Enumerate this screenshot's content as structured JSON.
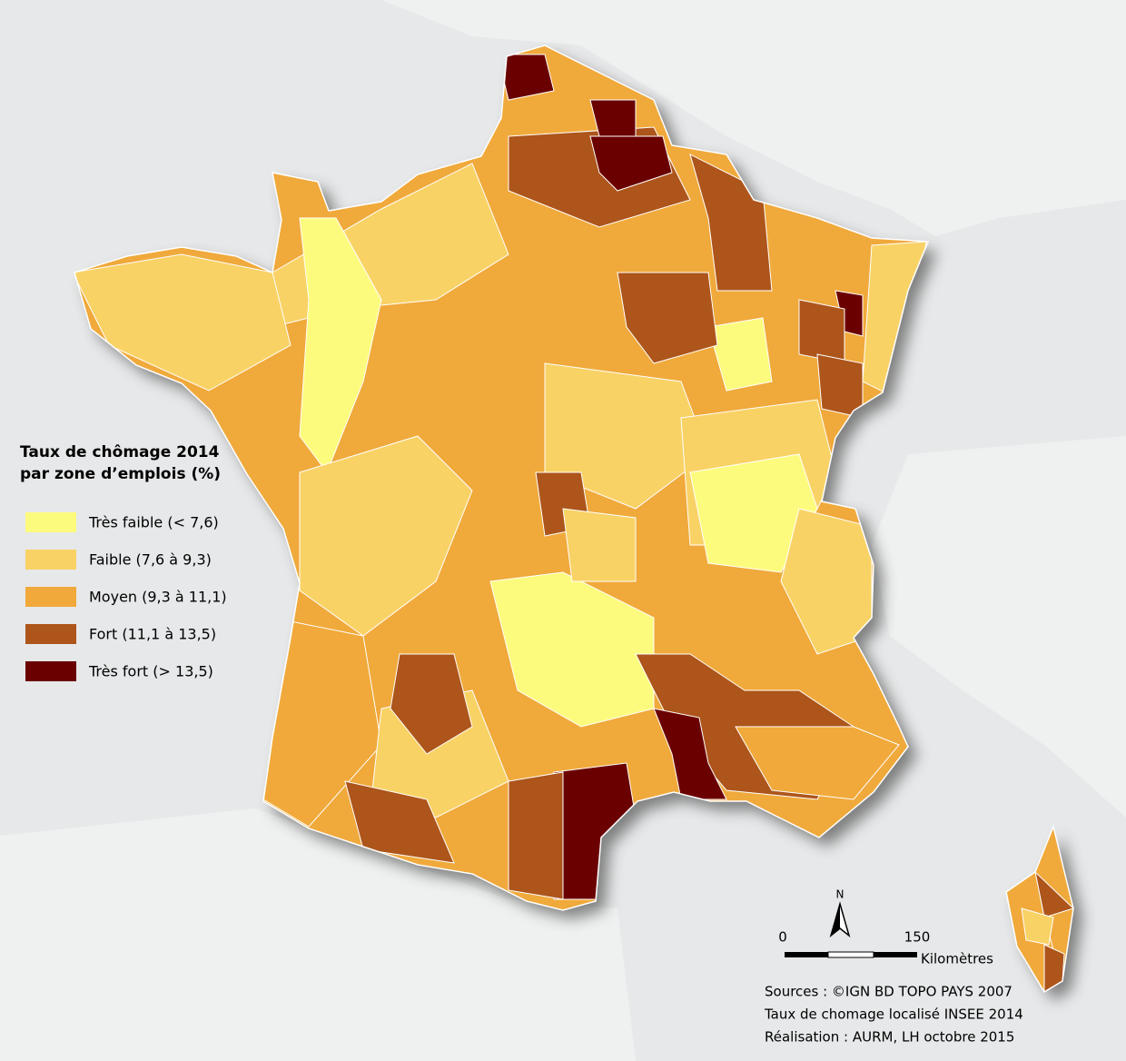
{
  "legend": {
    "title": [
      "Taux de chômage 2014",
      "par zone d’emplois (%)"
    ],
    "items": [
      {
        "label": "Très faible (< 7,6)",
        "color": "#fdfb7e"
      },
      {
        "label": "Faible (7,6 à 9,3)",
        "color": "#f9d266"
      },
      {
        "label": "Moyen (9,3 à 11,1)",
        "color": "#f0a93a"
      },
      {
        "label": "Fort (11,1 à 13,5)",
        "color": "#ad551b"
      },
      {
        "label": "Très fort (> 13,5)",
        "color": "#6b0000"
      }
    ]
  },
  "scale_bar": {
    "start": "0",
    "end": "150",
    "unit": "Kilomètres"
  },
  "north_arrow": "N",
  "sources": [
    "Sources : ©IGN BD TOPO PAYS 2007",
    "Taux de chomage localisé INSEE 2014",
    "Réalisation : AURM, LH octobre 2015"
  ]
}
